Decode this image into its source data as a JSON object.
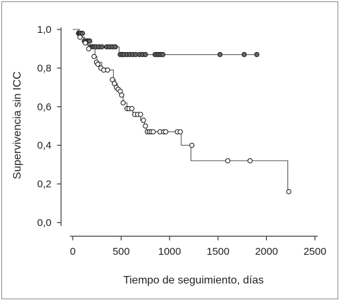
{
  "chart_data": {
    "type": "line",
    "title": "",
    "xlabel": "Tiempo de seguimiento, días",
    "ylabel": "Supervivencia sin ICC",
    "xlim": [
      0,
      2500
    ],
    "ylim": [
      0,
      1
    ],
    "x_ticks": [
      0,
      500,
      1000,
      1500,
      2000,
      2500
    ],
    "x_tick_labels": [
      "0",
      "500",
      "1000",
      "1500",
      "2000",
      "2500"
    ],
    "y_ticks": [
      0,
      0.2,
      0.4,
      0.6,
      0.8,
      1.0
    ],
    "y_tick_labels": [
      "0,0",
      "0,2",
      "0,4",
      "0,6",
      "0,8",
      "1,0"
    ],
    "grid": false,
    "step_curve": true,
    "series": [
      {
        "marker_fill": "#666666",
        "line_color": "#555555",
        "steps": [
          [
            0,
            1.0
          ],
          [
            55,
            0.98
          ],
          [
            90,
            0.96
          ],
          [
            115,
            0.94
          ],
          [
            150,
            0.92
          ],
          [
            180,
            0.91
          ],
          [
            480,
            0.87
          ],
          [
            1900,
            0.87
          ]
        ],
        "markers": [
          [
            60,
            0.98
          ],
          [
            70,
            0.98
          ],
          [
            80,
            0.98
          ],
          [
            100,
            0.98
          ],
          [
            120,
            0.94
          ],
          [
            135,
            0.94
          ],
          [
            150,
            0.94
          ],
          [
            165,
            0.94
          ],
          [
            175,
            0.94
          ],
          [
            190,
            0.91
          ],
          [
            205,
            0.91
          ],
          [
            220,
            0.91
          ],
          [
            240,
            0.91
          ],
          [
            270,
            0.91
          ],
          [
            300,
            0.91
          ],
          [
            350,
            0.91
          ],
          [
            380,
            0.91
          ],
          [
            410,
            0.91
          ],
          [
            440,
            0.91
          ],
          [
            490,
            0.87
          ],
          [
            510,
            0.87
          ],
          [
            530,
            0.87
          ],
          [
            560,
            0.87
          ],
          [
            590,
            0.87
          ],
          [
            620,
            0.87
          ],
          [
            650,
            0.87
          ],
          [
            690,
            0.87
          ],
          [
            720,
            0.87
          ],
          [
            750,
            0.87
          ],
          [
            850,
            0.87
          ],
          [
            870,
            0.87
          ],
          [
            890,
            0.87
          ],
          [
            910,
            0.87
          ],
          [
            930,
            0.87
          ],
          [
            1520,
            0.87
          ],
          [
            1770,
            0.87
          ],
          [
            1900,
            0.87
          ]
        ]
      },
      {
        "marker_fill": "#ffffff",
        "line_color": "#555555",
        "steps": [
          [
            0,
            1.0
          ],
          [
            70,
            0.96
          ],
          [
            120,
            0.93
          ],
          [
            160,
            0.9
          ],
          [
            230,
            0.86
          ],
          [
            250,
            0.83
          ],
          [
            300,
            0.8
          ],
          [
            340,
            0.79
          ],
          [
            420,
            0.74
          ],
          [
            440,
            0.72
          ],
          [
            460,
            0.7
          ],
          [
            480,
            0.68
          ],
          [
            500,
            0.66
          ],
          [
            520,
            0.62
          ],
          [
            560,
            0.59
          ],
          [
            620,
            0.56
          ],
          [
            700,
            0.53
          ],
          [
            740,
            0.5
          ],
          [
            760,
            0.47
          ],
          [
            1120,
            0.4
          ],
          [
            1220,
            0.32
          ],
          [
            2220,
            0.16
          ],
          [
            2250,
            0.16
          ]
        ],
        "markers": [
          [
            75,
            0.96
          ],
          [
            130,
            0.93
          ],
          [
            165,
            0.9
          ],
          [
            220,
            0.86
          ],
          [
            245,
            0.83
          ],
          [
            260,
            0.82
          ],
          [
            290,
            0.8
          ],
          [
            320,
            0.79
          ],
          [
            360,
            0.79
          ],
          [
            410,
            0.74
          ],
          [
            430,
            0.72
          ],
          [
            450,
            0.7
          ],
          [
            470,
            0.69
          ],
          [
            490,
            0.68
          ],
          [
            505,
            0.66
          ],
          [
            520,
            0.62
          ],
          [
            560,
            0.59
          ],
          [
            580,
            0.59
          ],
          [
            610,
            0.59
          ],
          [
            640,
            0.56
          ],
          [
            670,
            0.56
          ],
          [
            700,
            0.56
          ],
          [
            730,
            0.53
          ],
          [
            750,
            0.5
          ],
          [
            770,
            0.47
          ],
          [
            790,
            0.47
          ],
          [
            810,
            0.47
          ],
          [
            830,
            0.47
          ],
          [
            900,
            0.47
          ],
          [
            940,
            0.47
          ],
          [
            960,
            0.47
          ],
          [
            1080,
            0.47
          ],
          [
            1110,
            0.47
          ],
          [
            1230,
            0.4
          ],
          [
            1600,
            0.32
          ],
          [
            1830,
            0.32
          ],
          [
            2230,
            0.16
          ]
        ]
      }
    ]
  }
}
